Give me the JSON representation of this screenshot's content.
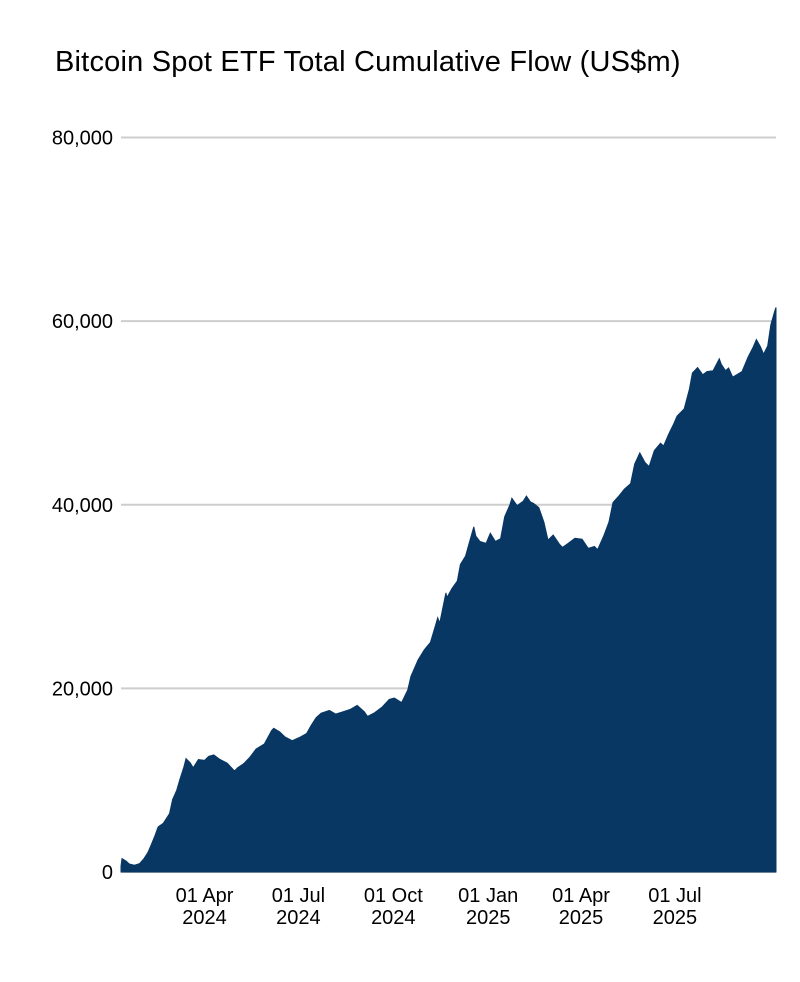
{
  "page": {
    "background_color": "#ffffff"
  },
  "chart_data": {
    "type": "area",
    "title": "Bitcoin Spot ETF Total Cumulative Flow (US$m)",
    "xlabel": "",
    "ylabel": "",
    "unit": "US$m",
    "legend_position": "none",
    "grid": true,
    "fill_color": "#093764",
    "grid_color": "#cdcdcd",
    "text_color": "#000000",
    "ylim": [
      0,
      80000
    ],
    "x_range": [
      "2024-01-11",
      "2025-10-07"
    ],
    "y_ticks": [
      {
        "value": 0,
        "label": "0"
      },
      {
        "value": 20000,
        "label": "20,000"
      },
      {
        "value": 40000,
        "label": "40,000"
      },
      {
        "value": 60000,
        "label": "60,000"
      },
      {
        "value": 80000,
        "label": "80,000"
      }
    ],
    "x_ticks": [
      {
        "date": "2024-04-01",
        "line1": "01 Apr",
        "line2": "2024"
      },
      {
        "date": "2024-07-01",
        "line1": "01 Jul",
        "line2": "2024"
      },
      {
        "date": "2024-10-01",
        "line1": "01 Oct",
        "line2": "2024"
      },
      {
        "date": "2025-01-01",
        "line1": "01 Jan",
        "line2": "2025"
      },
      {
        "date": "2025-04-01",
        "line1": "01 Apr",
        "line2": "2025"
      },
      {
        "date": "2025-07-01",
        "line1": "01 Jul",
        "line2": "2025"
      }
    ],
    "series": [
      {
        "name": "Total cumulative flow (US$m)",
        "points": [
          [
            "2024-01-11",
            628
          ],
          [
            "2024-01-12",
            1458
          ],
          [
            "2024-01-16",
            1175
          ],
          [
            "2024-01-19",
            870
          ],
          [
            "2024-01-24",
            745
          ],
          [
            "2024-01-29",
            920
          ],
          [
            "2024-02-02",
            1420
          ],
          [
            "2024-02-06",
            2100
          ],
          [
            "2024-02-09",
            2870
          ],
          [
            "2024-02-13",
            3970
          ],
          [
            "2024-02-16",
            4900
          ],
          [
            "2024-02-21",
            5300
          ],
          [
            "2024-02-27",
            6350
          ],
          [
            "2024-03-01",
            7900
          ],
          [
            "2024-03-05",
            8900
          ],
          [
            "2024-03-08",
            10050
          ],
          [
            "2024-03-12",
            11450
          ],
          [
            "2024-03-14",
            12350
          ],
          [
            "2024-03-18",
            11900
          ],
          [
            "2024-03-21",
            11350
          ],
          [
            "2024-03-26",
            12250
          ],
          [
            "2024-04-01",
            12150
          ],
          [
            "2024-04-05",
            12600
          ],
          [
            "2024-04-10",
            12750
          ],
          [
            "2024-04-16",
            12250
          ],
          [
            "2024-04-23",
            11850
          ],
          [
            "2024-04-30",
            11000
          ],
          [
            "2024-05-03",
            11350
          ],
          [
            "2024-05-09",
            11800
          ],
          [
            "2024-05-15",
            12500
          ],
          [
            "2024-05-21",
            13400
          ],
          [
            "2024-05-29",
            13950
          ],
          [
            "2024-06-05",
            15400
          ],
          [
            "2024-06-07",
            15650
          ],
          [
            "2024-06-13",
            15250
          ],
          [
            "2024-06-18",
            14700
          ],
          [
            "2024-06-25",
            14300
          ],
          [
            "2024-07-02",
            14650
          ],
          [
            "2024-07-09",
            15100
          ],
          [
            "2024-07-13",
            15900
          ],
          [
            "2024-07-18",
            16800
          ],
          [
            "2024-07-23",
            17300
          ],
          [
            "2024-07-31",
            17600
          ],
          [
            "2024-08-06",
            17200
          ],
          [
            "2024-08-13",
            17450
          ],
          [
            "2024-08-20",
            17700
          ],
          [
            "2024-08-27",
            18150
          ],
          [
            "2024-09-03",
            17450
          ],
          [
            "2024-09-06",
            16950
          ],
          [
            "2024-09-13",
            17350
          ],
          [
            "2024-09-20",
            17950
          ],
          [
            "2024-09-27",
            18800
          ],
          [
            "2024-10-02",
            18950
          ],
          [
            "2024-10-09",
            18450
          ],
          [
            "2024-10-15",
            19850
          ],
          [
            "2024-10-18",
            21300
          ],
          [
            "2024-10-25",
            23100
          ],
          [
            "2024-10-31",
            24200
          ],
          [
            "2024-11-06",
            25000
          ],
          [
            "2024-11-11",
            26900
          ],
          [
            "2024-11-13",
            27700
          ],
          [
            "2024-11-15",
            27100
          ],
          [
            "2024-11-21",
            30400
          ],
          [
            "2024-11-22",
            29900
          ],
          [
            "2024-11-27",
            30900
          ],
          [
            "2024-12-02",
            31700
          ],
          [
            "2024-12-05",
            33500
          ],
          [
            "2024-12-10",
            34400
          ],
          [
            "2024-12-13",
            35600
          ],
          [
            "2024-12-18",
            37600
          ],
          [
            "2024-12-20",
            36600
          ],
          [
            "2024-12-24",
            36000
          ],
          [
            "2024-12-30",
            35800
          ],
          [
            "2025-01-03",
            36900
          ],
          [
            "2025-01-08",
            36000
          ],
          [
            "2025-01-13",
            36300
          ],
          [
            "2025-01-17",
            38700
          ],
          [
            "2025-01-22",
            40000
          ],
          [
            "2025-01-24",
            40700
          ],
          [
            "2025-01-29",
            39900
          ],
          [
            "2025-02-04",
            40400
          ],
          [
            "2025-02-07",
            40950
          ],
          [
            "2025-02-11",
            40300
          ],
          [
            "2025-02-14",
            40150
          ],
          [
            "2025-02-19",
            39700
          ],
          [
            "2025-02-24",
            38100
          ],
          [
            "2025-02-28",
            36150
          ],
          [
            "2025-03-05",
            36700
          ],
          [
            "2025-03-11",
            35700
          ],
          [
            "2025-03-14",
            35350
          ],
          [
            "2025-03-19",
            35750
          ],
          [
            "2025-03-26",
            36350
          ],
          [
            "2025-04-02",
            36250
          ],
          [
            "2025-04-08",
            35250
          ],
          [
            "2025-04-14",
            35450
          ],
          [
            "2025-04-17",
            35100
          ],
          [
            "2025-04-23",
            36600
          ],
          [
            "2025-04-28",
            38100
          ],
          [
            "2025-05-02",
            40250
          ],
          [
            "2025-05-08",
            41000
          ],
          [
            "2025-05-13",
            41700
          ],
          [
            "2025-05-19",
            42300
          ],
          [
            "2025-05-23",
            44450
          ],
          [
            "2025-05-28",
            45650
          ],
          [
            "2025-06-02",
            44600
          ],
          [
            "2025-06-06",
            44150
          ],
          [
            "2025-06-11",
            45900
          ],
          [
            "2025-06-17",
            46700
          ],
          [
            "2025-06-20",
            46400
          ],
          [
            "2025-06-25",
            47700
          ],
          [
            "2025-06-30",
            48850
          ],
          [
            "2025-07-03",
            49650
          ],
          [
            "2025-07-10",
            50450
          ],
          [
            "2025-07-15",
            52600
          ],
          [
            "2025-07-18",
            54350
          ],
          [
            "2025-07-23",
            54950
          ],
          [
            "2025-07-28",
            54150
          ],
          [
            "2025-08-01",
            54500
          ],
          [
            "2025-08-07",
            54600
          ],
          [
            "2025-08-13",
            55900
          ],
          [
            "2025-08-15",
            55300
          ],
          [
            "2025-08-19",
            54600
          ],
          [
            "2025-08-22",
            54900
          ],
          [
            "2025-08-26",
            53900
          ],
          [
            "2025-08-29",
            54100
          ],
          [
            "2025-09-04",
            54500
          ],
          [
            "2025-09-10",
            56100
          ],
          [
            "2025-09-15",
            57200
          ],
          [
            "2025-09-18",
            58000
          ],
          [
            "2025-09-22",
            57200
          ],
          [
            "2025-09-25",
            56400
          ],
          [
            "2025-09-29",
            57300
          ],
          [
            "2025-10-02",
            59600
          ],
          [
            "2025-10-06",
            61200
          ],
          [
            "2025-10-07",
            61500
          ]
        ]
      }
    ]
  }
}
